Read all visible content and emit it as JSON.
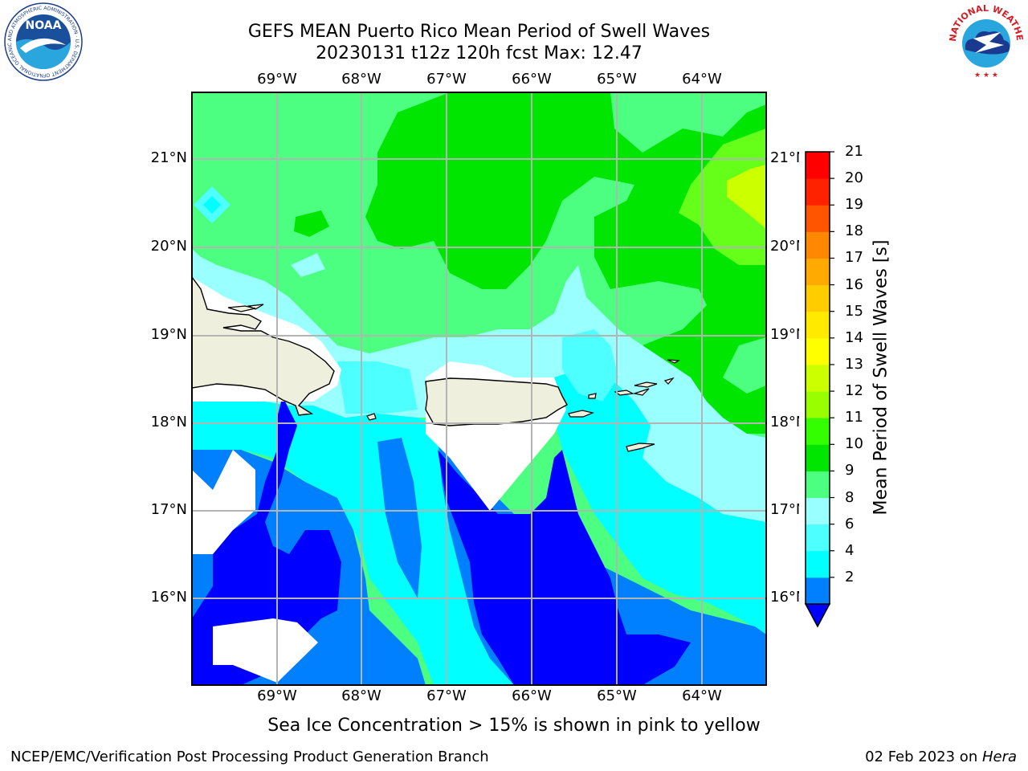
{
  "header": {
    "title_line1": "GEFS MEAN Puerto Rico Mean Period of Swell Waves",
    "title_line2": "20230131 t12z 120h fcst   Max: 12.47"
  },
  "logos": {
    "left": "NOAA",
    "left_ring": "NATIONAL OCEANIC AND ATMOSPHERIC ADMINISTRATION · U.S. DEPARTMENT OF COMMERCE",
    "right_ring": "NATIONAL WEATHER SERVICE"
  },
  "map": {
    "lon_ticks": [
      "69°W",
      "68°W",
      "67°W",
      "66°W",
      "65°W",
      "64°W"
    ],
    "lat_ticks": [
      "21°N",
      "20°N",
      "19°N",
      "18°N",
      "17°N",
      "16°N"
    ],
    "land_color": "#efefde",
    "ocean_fill_colors": {
      "2-4": "#0000ff",
      "4-6": "#0080ff",
      "6-8": "#00ffff",
      "8-9": "#80ffff",
      "9-10": "#4dff80",
      "10-11": "#00e600",
      "11-12": "#66ff1a",
      "12-13": "#ccff00"
    }
  },
  "colorbar": {
    "label": "Mean Period of Swell Waves [s]",
    "ticks": [
      "21",
      "20",
      "19",
      "18",
      "17",
      "16",
      "15",
      "14",
      "13",
      "12",
      "11",
      "10",
      "9",
      "8",
      "6",
      "4",
      "2"
    ],
    "colors": [
      "#0000ff",
      "#0080ff",
      "#00ffff",
      "#4dffff",
      "#99ffff",
      "#4dff80",
      "#00e600",
      "#33ff00",
      "#99ff00",
      "#ccff00",
      "#ffff00",
      "#ffea00",
      "#ffcc00",
      "#ffaa00",
      "#ff8800",
      "#ff5500",
      "#ff2200",
      "#ff0000"
    ]
  },
  "footer": {
    "note": "Sea Ice Concentration > 15% is shown in pink to yellow",
    "branch": "NCEP/EMC/Verification Post Processing Product Generation Branch",
    "date": "02 Feb 2023 on ",
    "host": "Hera"
  }
}
